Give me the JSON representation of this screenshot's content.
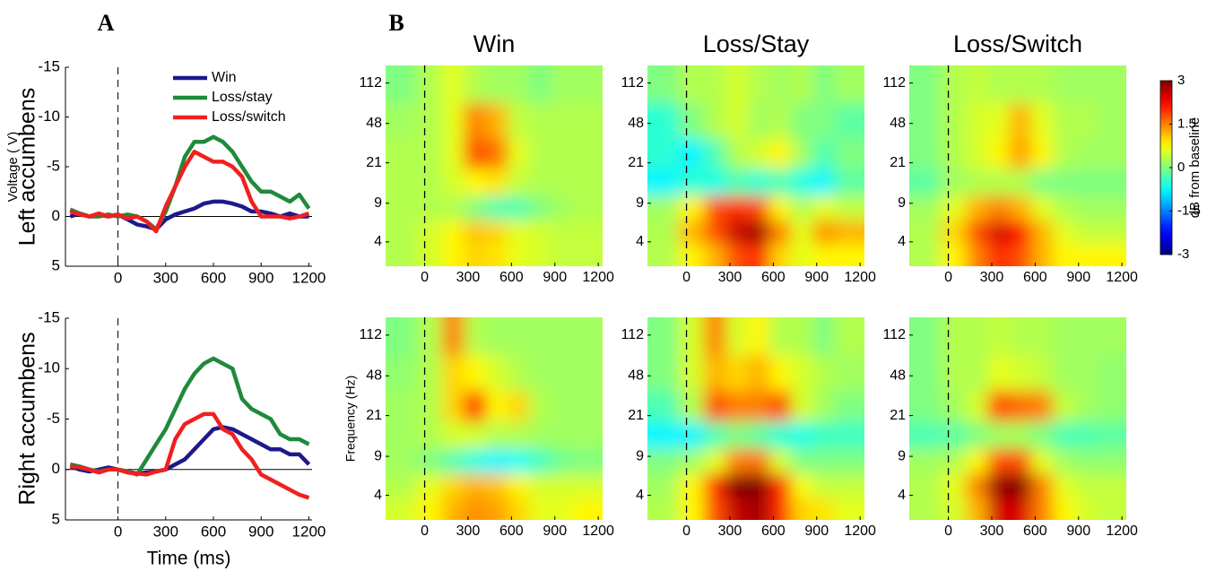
{
  "figure": {
    "panel_labels": [
      "A",
      "B"
    ],
    "row_labels": [
      "Left accumbens",
      "Right accumbens"
    ]
  },
  "chart_data": [
    {
      "type": "line",
      "y_label": "Voltage (  V)",
      "legend": "upper right",
      "y_inverted": true,
      "xlim": [
        -330,
        1220
      ],
      "ylim": [
        -15,
        5
      ],
      "xticks": [
        0,
        300,
        600,
        900,
        1200
      ],
      "yticks": [
        -15,
        -10,
        -5,
        0,
        5
      ],
      "x": [
        -300,
        -240,
        -180,
        -120,
        -60,
        0,
        60,
        120,
        180,
        240,
        300,
        360,
        420,
        480,
        540,
        600,
        660,
        720,
        780,
        840,
        900,
        960,
        1020,
        1080,
        1140,
        1200
      ],
      "series": [
        {
          "name": "Win",
          "color": "#1c1a8a",
          "values": [
            0,
            -0.3,
            0,
            -0.2,
            0,
            -0.2,
            0.3,
            0.8,
            1,
            1.3,
            0.3,
            -0.2,
            -0.5,
            -0.8,
            -1.3,
            -1.5,
            -1.5,
            -1.3,
            -1,
            -0.5,
            -0.5,
            -0.3,
            0,
            -0.3,
            0,
            0
          ]
        },
        {
          "name": "Loss/stay",
          "color": "#1f8a3a",
          "values": [
            -0.7,
            -0.3,
            0,
            0,
            -0.2,
            0,
            -0.2,
            0,
            0.5,
            1.3,
            -0.5,
            -3,
            -6,
            -7.5,
            -7.5,
            -8,
            -7.5,
            -6.5,
            -5,
            -3.5,
            -2.5,
            -2.5,
            -2,
            -1.5,
            -2.2,
            -0.8
          ]
        },
        {
          "name": "Loss/switch",
          "color": "#f0201e",
          "values": [
            -0.5,
            -0.2,
            0,
            -0.3,
            0,
            -0.2,
            0.2,
            0,
            0.5,
            1.5,
            -1,
            -3,
            -5,
            -6.5,
            -6,
            -5.5,
            -5.5,
            -5,
            -4,
            -1.5,
            0,
            0,
            0,
            0.2,
            0,
            -0.3
          ]
        }
      ]
    },
    {
      "type": "line",
      "x_label": "Time (ms)",
      "y_inverted": true,
      "xlim": [
        -330,
        1220
      ],
      "ylim": [
        -15,
        5
      ],
      "xticks": [
        0,
        300,
        600,
        900,
        1200
      ],
      "yticks": [
        -15,
        -10,
        -5,
        0,
        5
      ],
      "x": [
        -300,
        -240,
        -180,
        -120,
        -60,
        0,
        60,
        120,
        180,
        240,
        300,
        360,
        420,
        480,
        540,
        600,
        660,
        720,
        780,
        840,
        900,
        960,
        1020,
        1080,
        1140,
        1200
      ],
      "series": [
        {
          "color": "#1c1a8a",
          "values": [
            -0.3,
            0,
            0.2,
            0,
            -0.2,
            0,
            0.2,
            0.4,
            0.3,
            0.2,
            0,
            -0.5,
            -1,
            -2,
            -3,
            -4,
            -4.2,
            -4,
            -3.5,
            -3,
            -2.5,
            -2,
            -2,
            -1.5,
            -1.5,
            -0.5
          ]
        },
        {
          "color": "#1f8a3a",
          "values": [
            -0.5,
            -0.3,
            0,
            0.2,
            0,
            0,
            0.2,
            0.5,
            -1,
            -2.5,
            -4,
            -6,
            -8,
            -9.5,
            -10.5,
            -11,
            -10.5,
            -10,
            -7,
            -6,
            -5.5,
            -5,
            -3.5,
            -3,
            -3,
            -2.5
          ]
        },
        {
          "color": "#f0201e",
          "values": [
            -0.3,
            -0.2,
            0,
            0.3,
            0,
            0,
            0.3,
            0.4,
            0.5,
            0.2,
            0,
            -3,
            -4.5,
            -5,
            -5.5,
            -5.5,
            -4,
            -3.5,
            -2,
            -1,
            0.5,
            1,
            1.5,
            2,
            2.5,
            2.8
          ]
        }
      ]
    },
    {
      "type": "heatmap",
      "title": "Win",
      "log_y": true,
      "colormap": "jet",
      "clim": [
        -3,
        3
      ],
      "xlim": [
        -270,
        1230
      ],
      "ylim": [
        2.4,
        162
      ],
      "xticks": [
        0,
        300,
        600,
        900,
        1200
      ],
      "yticks": [
        4,
        9,
        21,
        48,
        112
      ],
      "x": [
        -150,
        50,
        200,
        350,
        500,
        650,
        800,
        950,
        1100
      ],
      "y": [
        3,
        5,
        8,
        14,
        25,
        50,
        110
      ],
      "z": [
        [
          0.3,
          0.5,
          0.8,
          1,
          0.9,
          0.6,
          0.5,
          0.4,
          0.4
        ],
        [
          0.3,
          0.5,
          0.8,
          1.1,
          1,
          0.6,
          0.5,
          0.4,
          0.4
        ],
        [
          0.3,
          0.3,
          0.3,
          0,
          -0.3,
          -0.3,
          0,
          0.2,
          0.3
        ],
        [
          0.3,
          0.3,
          0.5,
          0.8,
          0.9,
          0.4,
          0.3,
          0.3,
          0.3
        ],
        [
          0.3,
          0.3,
          0.6,
          1.8,
          1.6,
          0.6,
          0.3,
          0.3,
          0.3
        ],
        [
          0.2,
          0.3,
          0.6,
          1.5,
          1.2,
          0.4,
          0.3,
          0.3,
          0.3
        ],
        [
          0,
          0.3,
          0.6,
          0.3,
          0.2,
          0.2,
          0,
          0.2,
          0.2
        ]
      ]
    },
    {
      "type": "heatmap",
      "title": "Loss/Stay",
      "log_y": true,
      "colormap": "jet",
      "clim": [
        -3,
        3
      ],
      "xlim": [
        -270,
        1230
      ],
      "ylim": [
        2.4,
        162
      ],
      "xticks": [
        0,
        300,
        600,
        900,
        1200
      ],
      "yticks": [
        4,
        9,
        21,
        48,
        112
      ],
      "x": [
        -150,
        50,
        200,
        350,
        500,
        650,
        800,
        950,
        1100
      ],
      "y": [
        3,
        5,
        8,
        14,
        25,
        50,
        110
      ],
      "z": [
        [
          0.3,
          0.8,
          1.2,
          1.8,
          2,
          1,
          0.6,
          0.8,
          0.8
        ],
        [
          0.3,
          1.2,
          1.8,
          2.6,
          2.8,
          1.5,
          0.6,
          1.4,
          1.2
        ],
        [
          0.2,
          0.8,
          1.8,
          2,
          1.8,
          0.8,
          0.3,
          0.6,
          0.4
        ],
        [
          -0.8,
          -0.5,
          -0.6,
          -0.3,
          -0.5,
          -0.3,
          -0.6,
          -0.8,
          -0.2
        ],
        [
          -0.5,
          -0.8,
          -0.3,
          0.3,
          0.5,
          0.8,
          0.2,
          -0.3,
          0
        ],
        [
          -0.5,
          0,
          0.3,
          0.5,
          0.2,
          0.3,
          0,
          0,
          -0.2
        ],
        [
          0,
          0.3,
          0.3,
          0.5,
          0.3,
          0.2,
          0.3,
          0,
          0.2
        ]
      ]
    },
    {
      "type": "heatmap",
      "title": "Loss/Switch",
      "log_y": true,
      "colormap": "jet",
      "clim": [
        -3,
        3
      ],
      "xlim": [
        -270,
        1230
      ],
      "ylim": [
        2.4,
        162
      ],
      "xticks": [
        0,
        300,
        600,
        900,
        1200
      ],
      "yticks": [
        4,
        9,
        21,
        48,
        112
      ],
      "x": [
        -150,
        50,
        200,
        350,
        500,
        650,
        800,
        950,
        1100
      ],
      "y": [
        3,
        5,
        8,
        14,
        25,
        50,
        110
      ],
      "z": [
        [
          0.3,
          0.8,
          1.5,
          2,
          1.8,
          1.2,
          0.8,
          0.8,
          0.8
        ],
        [
          0.3,
          1,
          1.8,
          2.5,
          2.2,
          1.2,
          0.6,
          0.4,
          0.4
        ],
        [
          0.2,
          0.6,
          1.2,
          1.5,
          1.2,
          0.6,
          0.3,
          0.2,
          0.2
        ],
        [
          -0.2,
          0.2,
          0.3,
          0.3,
          0.3,
          0,
          0,
          0,
          0
        ],
        [
          0,
          0.3,
          0.5,
          0.8,
          1.3,
          0.8,
          0.3,
          0.2,
          0.2
        ],
        [
          0,
          0.3,
          0.5,
          0.6,
          1.2,
          0.6,
          0.3,
          0.3,
          0.2
        ],
        [
          0,
          0.3,
          0.4,
          0.3,
          0.3,
          0.3,
          0.2,
          0.2,
          0.2
        ]
      ]
    },
    {
      "type": "heatmap",
      "y_label": "Frequency (Hz)",
      "log_y": true,
      "colormap": "jet",
      "clim": [
        -3,
        3
      ],
      "xlim": [
        -270,
        1230
      ],
      "ylim": [
        2.4,
        162
      ],
      "xticks": [
        0,
        300,
        600,
        900,
        1200
      ],
      "yticks": [
        4,
        9,
        21,
        48,
        112
      ],
      "x": [
        -150,
        50,
        200,
        350,
        500,
        650,
        800,
        950,
        1100
      ],
      "y": [
        3,
        5,
        8,
        14,
        25,
        50,
        110
      ],
      "z": [
        [
          0.5,
          0.8,
          1.2,
          1.4,
          1.3,
          1,
          0.6,
          0.6,
          0.8
        ],
        [
          0.3,
          0.6,
          1,
          1.2,
          1.1,
          0.8,
          0.5,
          0.5,
          0.5
        ],
        [
          0.2,
          0,
          -0.3,
          -0.6,
          -0.8,
          -0.7,
          -0.4,
          -0.1,
          0
        ],
        [
          0.2,
          0.3,
          0.5,
          0.5,
          0.3,
          0.3,
          0.2,
          0.2,
          0.2
        ],
        [
          0.2,
          0.3,
          1,
          2,
          0.8,
          1,
          0.3,
          0.2,
          0.2
        ],
        [
          0.1,
          0.3,
          1,
          0.8,
          0.5,
          0.3,
          0.2,
          0.2,
          0.2
        ],
        [
          0,
          0.3,
          1.5,
          0.3,
          0.2,
          0.2,
          0.2,
          0.2,
          0.2
        ]
      ]
    },
    {
      "type": "heatmap",
      "log_y": true,
      "colormap": "jet",
      "clim": [
        -3,
        3
      ],
      "xlim": [
        -270,
        1230
      ],
      "ylim": [
        2.4,
        162
      ],
      "xticks": [
        0,
        300,
        600,
        900,
        1200
      ],
      "yticks": [
        4,
        9,
        21,
        48,
        112
      ],
      "x": [
        -150,
        50,
        200,
        350,
        500,
        650,
        800,
        950,
        1100
      ],
      "y": [
        3,
        5,
        8,
        14,
        25,
        50,
        110
      ],
      "z": [
        [
          0.3,
          0.8,
          1.8,
          2.6,
          2.8,
          2,
          1,
          0.9,
          0.6
        ],
        [
          0.2,
          0.8,
          2,
          3,
          3.2,
          2,
          0.7,
          0.4,
          0.4
        ],
        [
          0,
          0.2,
          0.6,
          1.5,
          1.6,
          0.5,
          0,
          0,
          0
        ],
        [
          -0.8,
          -0.8,
          -0.3,
          0,
          -0.2,
          -0.5,
          -0.6,
          -0.4,
          -0.4
        ],
        [
          -0.3,
          0.3,
          1.8,
          1.5,
          1.5,
          1.8,
          0.5,
          0.2,
          0
        ],
        [
          0,
          0.5,
          1.2,
          1,
          1.2,
          0.8,
          0.5,
          0.3,
          0.2
        ],
        [
          0,
          0.5,
          1.5,
          0.5,
          0.8,
          0.3,
          0.3,
          0,
          0.3
        ]
      ]
    },
    {
      "type": "heatmap",
      "log_y": true,
      "colormap": "jet",
      "clim": [
        -3,
        3
      ],
      "xlim": [
        -270,
        1230
      ],
      "ylim": [
        2.4,
        162
      ],
      "xticks": [
        0,
        300,
        600,
        900,
        1200
      ],
      "yticks": [
        4,
        9,
        21,
        48,
        112
      ],
      "x": [
        -150,
        50,
        200,
        350,
        500,
        650,
        800,
        950,
        1100
      ],
      "y": [
        3,
        5,
        8,
        14,
        25,
        50,
        110
      ],
      "z": [
        [
          0.3,
          0.5,
          1.2,
          2.5,
          2.5,
          1.5,
          0.8,
          0.5,
          0.4
        ],
        [
          0.3,
          0.6,
          1.5,
          2.9,
          3,
          1.5,
          0.6,
          0.4,
          0.4
        ],
        [
          0.2,
          0.3,
          0.8,
          1.8,
          1.8,
          0.6,
          0.2,
          0.1,
          0.1
        ],
        [
          -0.3,
          -0.2,
          0,
          0.2,
          0.2,
          0,
          -0.3,
          -0.3,
          -0.2
        ],
        [
          0,
          0.2,
          0.5,
          1.8,
          1.6,
          1.5,
          0.4,
          0.2,
          0.1
        ],
        [
          0,
          0.3,
          0.3,
          0.6,
          0.5,
          0.4,
          0.2,
          0.2,
          0.1
        ],
        [
          0,
          0.3,
          0.3,
          0.4,
          0.3,
          0.3,
          0.2,
          0.2,
          0.2
        ]
      ]
    },
    {
      "type": "colorbar",
      "label": "dB from baseline",
      "colormap": "jet",
      "clim": [
        -3,
        3
      ],
      "ticks": [
        3,
        1.5,
        0,
        -1.5,
        -3
      ]
    }
  ]
}
